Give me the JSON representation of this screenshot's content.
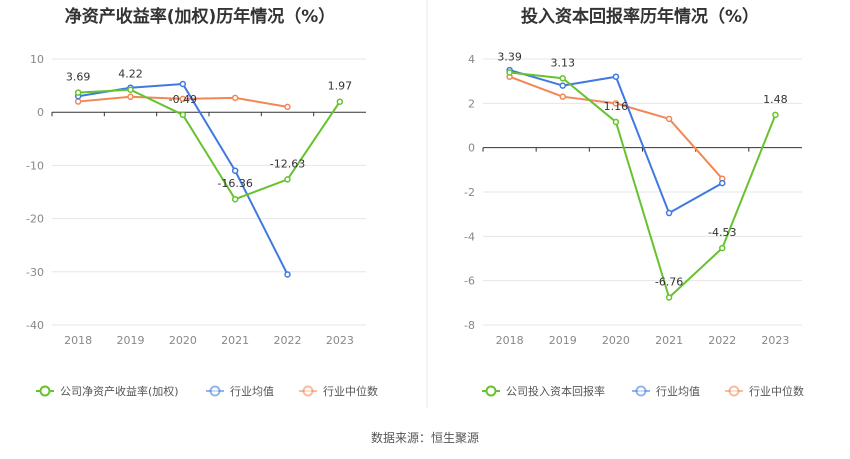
{
  "colors": {
    "company": "#66c22e",
    "industry_avg": "#3f79e0",
    "industry_median": "#f28755",
    "grid": "#e6e6e6",
    "axis": "#333333",
    "divider": "#e8e8e8"
  },
  "source_label": "数据来源：恒生聚源",
  "chart_data": [
    {
      "type": "line",
      "title": "净资产收益率(加权)历年情况（%）",
      "categories": [
        "2018",
        "2019",
        "2020",
        "2021",
        "2022",
        "2023"
      ],
      "ylim": [
        -40,
        10
      ],
      "yticks": [
        10,
        0,
        -10,
        -20,
        -30,
        -40
      ],
      "grid": true,
      "legend_position": "bottom",
      "series": [
        {
          "name": "公司净资产收益率(加权)",
          "key": "company",
          "values": [
            3.69,
            4.22,
            -0.49,
            -16.36,
            -12.63,
            1.97
          ],
          "labels": [
            "3.69",
            "4.22",
            "-0.49",
            "-16.36",
            "-12.63",
            "1.97"
          ]
        },
        {
          "name": "行业均值",
          "key": "industry_avg",
          "values": [
            3.0,
            4.6,
            5.3,
            -11.0,
            -30.5,
            null
          ]
        },
        {
          "name": "行业中位数",
          "key": "industry_median",
          "values": [
            2.0,
            2.9,
            2.5,
            2.7,
            1.0,
            null
          ]
        }
      ]
    },
    {
      "type": "line",
      "title": "投入资本回报率历年情况（%）",
      "categories": [
        "2018",
        "2019",
        "2020",
        "2021",
        "2022",
        "2023"
      ],
      "ylim": [
        -8,
        4
      ],
      "yticks": [
        4,
        2,
        0,
        -2,
        -4,
        -6,
        -8
      ],
      "grid": true,
      "legend_position": "bottom",
      "series": [
        {
          "name": "公司投入资本回报率",
          "key": "company",
          "values": [
            3.39,
            3.13,
            1.16,
            -6.76,
            -4.53,
            1.48
          ],
          "labels": [
            "3.39",
            "3.13",
            "1.16",
            "-6.76",
            "-4.53",
            "1.48"
          ]
        },
        {
          "name": "行业均值",
          "key": "industry_avg",
          "values": [
            3.5,
            2.8,
            3.2,
            -2.95,
            -1.6,
            null
          ]
        },
        {
          "name": "行业中位数",
          "key": "industry_median",
          "values": [
            3.2,
            2.3,
            2.0,
            1.3,
            -1.4,
            null
          ]
        }
      ]
    }
  ]
}
